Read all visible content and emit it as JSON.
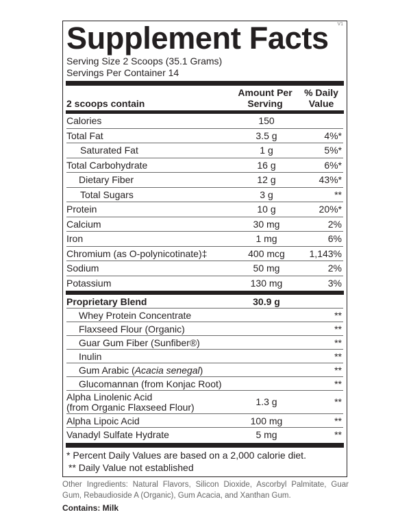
{
  "version": "V1",
  "title": "Supplement Facts",
  "serving_size": "Serving Size 2 Scoops (35.1 Grams)",
  "servings_per_container": "Servings Per Container 14",
  "header": {
    "name": "2 scoops contain",
    "amount": "Amount Per Serving",
    "dv": "% Daily Value"
  },
  "nutrients": [
    {
      "name": "Calories",
      "amount": "150",
      "dv": ""
    },
    {
      "name": "Total Fat",
      "amount": "3.5 g",
      "dv": "4%*"
    },
    {
      "name": "Saturated Fat",
      "amount": "1 g",
      "dv": "5%*"
    },
    {
      "name": "Total Carbohydrate",
      "amount": "16 g",
      "dv": "6%*"
    },
    {
      "name": "Dietary Fiber",
      "amount": "12 g",
      "dv": "43%*"
    },
    {
      "name": "Total Sugars",
      "amount": "3 g",
      "dv": "**"
    },
    {
      "name": "Protein",
      "amount": "10 g",
      "dv": "20%*"
    },
    {
      "name": "Calcium",
      "amount": "30 mg",
      "dv": "2%"
    },
    {
      "name": "Iron",
      "amount": "1 mg",
      "dv": "6%"
    },
    {
      "name": "Chromium (as O-polynicotinate)‡",
      "amount": "400 mcg",
      "dv": "1,143%"
    },
    {
      "name": "Sodium",
      "amount": "50 mg",
      "dv": "2%"
    },
    {
      "name": "Potassium",
      "amount": "130 mg",
      "dv": "3%"
    }
  ],
  "blend": {
    "name": "Proprietary Blend",
    "amount": "30.9 g"
  },
  "blend_items": [
    {
      "name": "Whey Protein Concentrate",
      "dv": "**"
    },
    {
      "name": "Flaxseed Flour (Organic)",
      "dv": "**"
    },
    {
      "name": "Guar Gum Fiber (Sunfiber®)",
      "dv": "**"
    },
    {
      "name": "Inulin",
      "dv": "**"
    },
    {
      "name": "Gum Arabic (",
      "name_italic": "Acacia senegal",
      "name_end": ")",
      "dv": "**"
    },
    {
      "name": "Glucomannan (from Konjac Root)",
      "dv": "**"
    }
  ],
  "others": [
    {
      "name": "Alpha Linolenic Acid",
      "name2": "(from Organic Flaxseed Flour)",
      "amount": "1.3 g",
      "dv": "**"
    },
    {
      "name": "Alpha Lipoic Acid",
      "amount": "100 mg",
      "dv": "**"
    },
    {
      "name": "Vanadyl Sulfate Hydrate",
      "amount": "5 mg",
      "dv": "**"
    }
  ],
  "footnotes": [
    "* Percent Daily Values are based on a 2,000 calorie diet.",
    "** Daily Value not established"
  ],
  "other_ingredients": "Other Ingredients: Natural Flavors, Silicon Dioxide, Ascorbyl Palmitate, Guar Gum, Rebaudioside A (Organic), Gum Acacia, and Xanthan Gum.",
  "contains": "Contains: Milk"
}
